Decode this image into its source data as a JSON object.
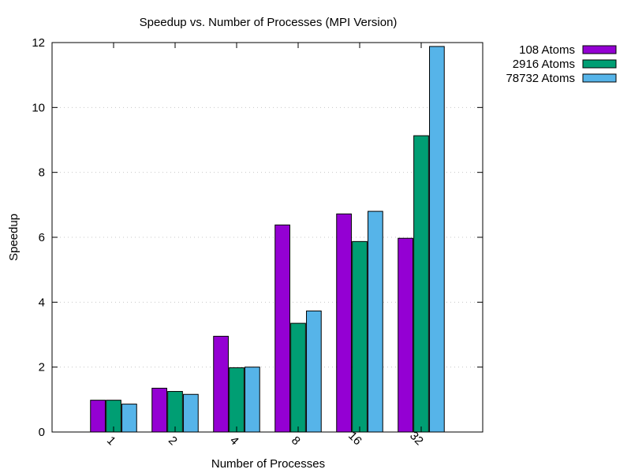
{
  "chart_data": {
    "type": "bar",
    "title": "Speedup vs. Number of Processes (MPI Version)",
    "xlabel": "Number of Processes",
    "ylabel": "Speedup",
    "categories": [
      "1",
      "2",
      "4",
      "8",
      "16",
      "32"
    ],
    "ylim": [
      0,
      12
    ],
    "yticks": [
      0,
      2,
      4,
      6,
      8,
      10,
      12
    ],
    "grid": true,
    "legend_position": "top-right-outside",
    "series": [
      {
        "name": "108 Atoms",
        "color": "#9400d3",
        "values": [
          0.98,
          1.35,
          2.95,
          6.38,
          6.72,
          5.97
        ]
      },
      {
        "name": "2916 Atoms",
        "color": "#009e73",
        "values": [
          0.98,
          1.25,
          1.98,
          3.35,
          5.87,
          9.13
        ]
      },
      {
        "name": "78732 Atoms",
        "color": "#56b4e9",
        "values": [
          0.86,
          1.16,
          2.0,
          3.73,
          6.8,
          11.88
        ]
      }
    ]
  }
}
